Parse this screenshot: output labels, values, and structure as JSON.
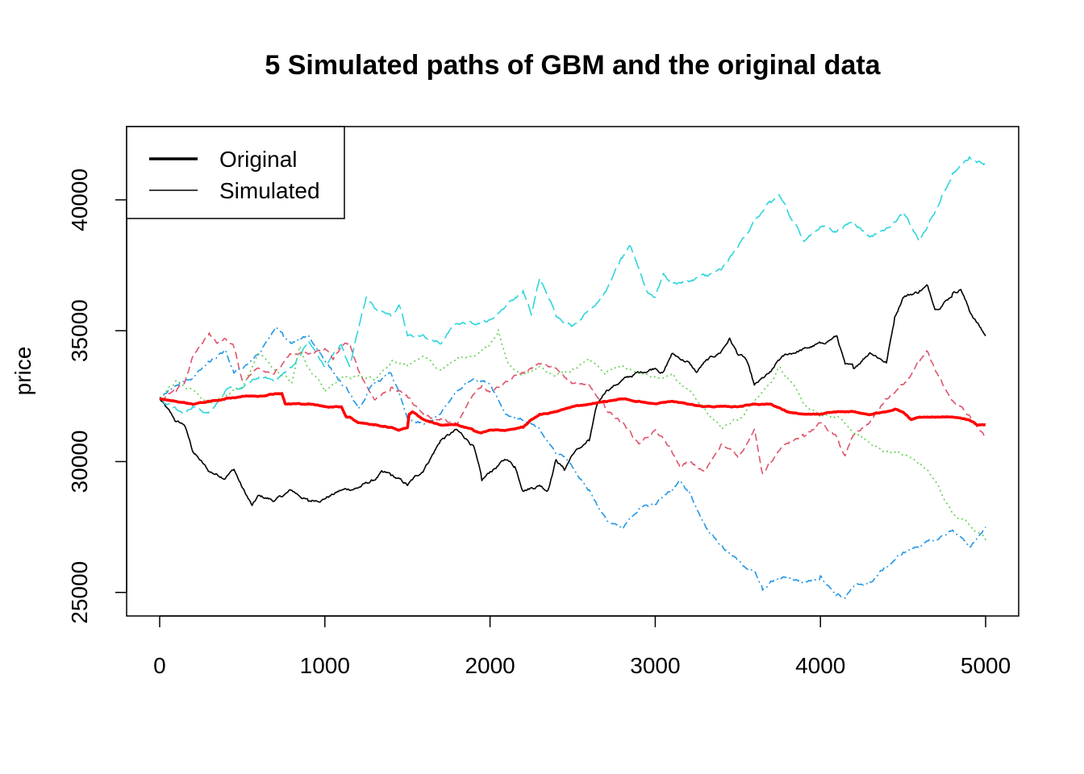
{
  "chart_data": {
    "type": "line",
    "title": "5 Simulated paths of GBM and the original data",
    "xlabel": "",
    "ylabel": "price",
    "xlim": [
      -200,
      5200
    ],
    "ylim": [
      24100,
      42800
    ],
    "x_ticks": [
      0,
      1000,
      2000,
      3000,
      4000,
      5000
    ],
    "x_tick_labels": [
      "0",
      "1000",
      "2000",
      "3000",
      "4000",
      "5000"
    ],
    "y_ticks": [
      25000,
      30000,
      35000,
      40000
    ],
    "y_tick_labels": [
      "25000",
      "30000",
      "35000",
      "40000"
    ],
    "grid": false,
    "legend": {
      "position": "top-left",
      "entries": [
        {
          "label": "Original",
          "color": "#000000",
          "style": "thick"
        },
        {
          "label": "Simulated",
          "color": "#000000",
          "style": "thin"
        }
      ]
    },
    "series": [
      {
        "color": "#000000",
        "dash": "solid",
        "x": [
          0,
          100,
          150,
          200,
          300,
          400,
          450,
          500,
          560,
          600,
          700,
          800,
          900,
          1000,
          1100,
          1200,
          1300,
          1350,
          1400,
          1500,
          1600,
          1700,
          1800,
          1850,
          1900,
          1950,
          2000,
          2100,
          2150,
          2200,
          2300,
          2350,
          2400,
          2450,
          2500,
          2600,
          2650,
          2700,
          2800,
          2900,
          3000,
          3050,
          3100,
          3200,
          3250,
          3300,
          3400,
          3450,
          3500,
          3550,
          3600,
          3700,
          3750,
          3800,
          3900,
          4000,
          4100,
          4150,
          4200,
          4300,
          4400,
          4450,
          4500,
          4600,
          4650,
          4700,
          4800,
          4850,
          4900,
          5000
        ],
        "y": [
          32400,
          31500,
          31400,
          30400,
          29600,
          29400,
          29700,
          29000,
          28300,
          28700,
          28500,
          28900,
          28500,
          28600,
          28900,
          29000,
          29300,
          29600,
          29500,
          29100,
          29700,
          30800,
          31200,
          30900,
          30600,
          29300,
          29600,
          30100,
          29800,
          28900,
          29100,
          28900,
          30100,
          29700,
          30300,
          30800,
          32200,
          32700,
          33100,
          33400,
          33600,
          33400,
          34100,
          33800,
          33400,
          33800,
          34200,
          34700,
          34100,
          33900,
          32900,
          33400,
          33900,
          34100,
          34300,
          34500,
          34800,
          33700,
          33600,
          34200,
          33800,
          35500,
          36300,
          36500,
          36700,
          35800,
          36400,
          36600,
          35800,
          34800
        ]
      },
      {
        "color": "#2ed5dc",
        "dash": "longdash",
        "x": [
          0,
          100,
          150,
          200,
          300,
          400,
          500,
          600,
          700,
          800,
          900,
          1000,
          1100,
          1150,
          1200,
          1250,
          1300,
          1400,
          1450,
          1500,
          1600,
          1700,
          1800,
          1900,
          2000,
          2100,
          2200,
          2250,
          2300,
          2400,
          2500,
          2600,
          2700,
          2800,
          2850,
          2900,
          2950,
          3000,
          3050,
          3100,
          3200,
          3300,
          3400,
          3500,
          3600,
          3700,
          3750,
          3800,
          3850,
          3900,
          4000,
          4100,
          4200,
          4300,
          4400,
          4500,
          4600,
          4700,
          4800,
          4900,
          5000
        ],
        "y": [
          32400,
          32000,
          31800,
          32100,
          31900,
          32700,
          32800,
          33200,
          33100,
          33600,
          34600,
          33600,
          34500,
          33600,
          35000,
          36300,
          35900,
          35600,
          36000,
          34800,
          34800,
          34500,
          35300,
          35300,
          35400,
          36000,
          36500,
          35600,
          37000,
          35600,
          35200,
          35800,
          36500,
          37800,
          38200,
          37400,
          36500,
          36300,
          37200,
          36800,
          36900,
          37100,
          37300,
          38200,
          39200,
          39900,
          40200,
          39600,
          39100,
          38400,
          39000,
          38800,
          39200,
          38600,
          38900,
          39500,
          38400,
          39600,
          41000,
          41600,
          41400
        ]
      },
      {
        "color": "#df536b",
        "dash": "dashed",
        "x": [
          0,
          100,
          150,
          200,
          300,
          350,
          400,
          450,
          500,
          600,
          700,
          800,
          900,
          1000,
          1050,
          1100,
          1150,
          1200,
          1300,
          1400,
          1500,
          1600,
          1700,
          1800,
          1900,
          1950,
          2000,
          2100,
          2200,
          2300,
          2400,
          2500,
          2600,
          2700,
          2800,
          2900,
          3000,
          3100,
          3150,
          3200,
          3300,
          3400,
          3500,
          3600,
          3650,
          3700,
          3800,
          3900,
          4000,
          4100,
          4150,
          4200,
          4300,
          4400,
          4500,
          4600,
          4650,
          4700,
          4800,
          4900,
          5000
        ],
        "y": [
          32400,
          32700,
          33000,
          34000,
          34900,
          34500,
          34700,
          34400,
          33100,
          33600,
          33400,
          34100,
          34100,
          34300,
          33900,
          34400,
          34500,
          33500,
          32400,
          32800,
          32500,
          31800,
          31600,
          31400,
          32600,
          32900,
          32700,
          33100,
          33400,
          33700,
          33600,
          33000,
          32900,
          32000,
          31500,
          30700,
          31200,
          30400,
          29800,
          30000,
          29600,
          30700,
          30200,
          31200,
          29500,
          30000,
          30700,
          31000,
          31500,
          30900,
          30200,
          31000,
          31500,
          32400,
          32900,
          33800,
          34200,
          33400,
          32300,
          31800,
          30900
        ]
      },
      {
        "color": "#2297e6",
        "dash": "dotdash",
        "x": [
          0,
          100,
          200,
          300,
          400,
          450,
          500,
          600,
          700,
          750,
          800,
          900,
          1000,
          1100,
          1150,
          1200,
          1300,
          1400,
          1450,
          1500,
          1600,
          1700,
          1800,
          1900,
          2000,
          2100,
          2200,
          2300,
          2400,
          2450,
          2500,
          2600,
          2700,
          2800,
          2900,
          3000,
          3100,
          3150,
          3200,
          3300,
          3400,
          3500,
          3600,
          3650,
          3700,
          3800,
          3900,
          4000,
          4100,
          4150,
          4200,
          4300,
          4400,
          4500,
          4600,
          4700,
          4800,
          4850,
          4900,
          5000
        ],
        "y": [
          32400,
          32900,
          33200,
          33800,
          34200,
          33400,
          33600,
          34100,
          35100,
          34800,
          34500,
          34800,
          33900,
          33000,
          32600,
          32000,
          33000,
          33400,
          32600,
          31600,
          31400,
          31800,
          32700,
          33200,
          33000,
          31800,
          31600,
          31200,
          30300,
          30200,
          29800,
          28900,
          27800,
          27400,
          28200,
          28400,
          28900,
          29300,
          28900,
          27600,
          26800,
          26200,
          25800,
          25100,
          25400,
          25600,
          25400,
          25600,
          24900,
          24800,
          25200,
          25400,
          26000,
          26500,
          26800,
          27000,
          27400,
          27100,
          26700,
          27500
        ]
      },
      {
        "color": "#61d04f",
        "dash": "dotted",
        "x": [
          0,
          100,
          200,
          300,
          400,
          500,
          600,
          700,
          800,
          850,
          900,
          1000,
          1100,
          1200,
          1300,
          1400,
          1500,
          1600,
          1700,
          1800,
          1900,
          2000,
          2050,
          2100,
          2150,
          2200,
          2300,
          2400,
          2500,
          2600,
          2700,
          2800,
          2900,
          3000,
          3100,
          3200,
          3300,
          3400,
          3500,
          3600,
          3700,
          3750,
          3800,
          3900,
          4000,
          4100,
          4200,
          4300,
          4400,
          4500,
          4600,
          4700,
          4800,
          4900,
          5000
        ],
        "y": [
          32400,
          33100,
          32700,
          32200,
          32500,
          32900,
          34100,
          33500,
          33000,
          34400,
          33600,
          32700,
          33200,
          33300,
          33100,
          33800,
          33700,
          34000,
          33500,
          33900,
          34000,
          34500,
          35000,
          33900,
          33500,
          33300,
          33600,
          33300,
          33500,
          33900,
          33400,
          33700,
          33400,
          33200,
          33400,
          32700,
          32000,
          31300,
          31600,
          32300,
          33000,
          33600,
          33200,
          32200,
          31800,
          31700,
          31100,
          30700,
          30400,
          30300,
          30000,
          29200,
          28000,
          27600,
          27000
        ]
      },
      {
        "color": "#ff0000",
        "dash": "solid",
        "thick": true,
        "x": [
          0,
          100,
          200,
          300,
          400,
          500,
          600,
          700,
          740,
          760,
          800,
          900,
          1000,
          1100,
          1130,
          1150,
          1200,
          1300,
          1400,
          1450,
          1500,
          1510,
          1530,
          1600,
          1650,
          1700,
          1800,
          1850,
          1900,
          1950,
          2000,
          2100,
          2200,
          2250,
          2300,
          2400,
          2500,
          2600,
          2700,
          2800,
          2900,
          3000,
          3100,
          3200,
          3300,
          3400,
          3500,
          3600,
          3700,
          3800,
          3900,
          4000,
          4100,
          4200,
          4300,
          4400,
          4450,
          4500,
          4550,
          4600,
          4700,
          4800,
          4900,
          4950,
          5000
        ],
        "y": [
          32400,
          32300,
          32200,
          32300,
          32400,
          32500,
          32500,
          32600,
          32600,
          32200,
          32200,
          32200,
          32100,
          32100,
          31700,
          31700,
          31500,
          31400,
          31300,
          31200,
          31300,
          31800,
          31900,
          31600,
          31500,
          31400,
          31400,
          31300,
          31200,
          31100,
          31200,
          31200,
          31300,
          31600,
          31800,
          31900,
          32100,
          32200,
          32300,
          32400,
          32300,
          32200,
          32300,
          32200,
          32100,
          32100,
          32100,
          32200,
          32200,
          31900,
          31800,
          31800,
          31900,
          31900,
          31800,
          31900,
          32000,
          31900,
          31600,
          31700,
          31700,
          31700,
          31600,
          31400,
          31400
        ]
      }
    ]
  }
}
